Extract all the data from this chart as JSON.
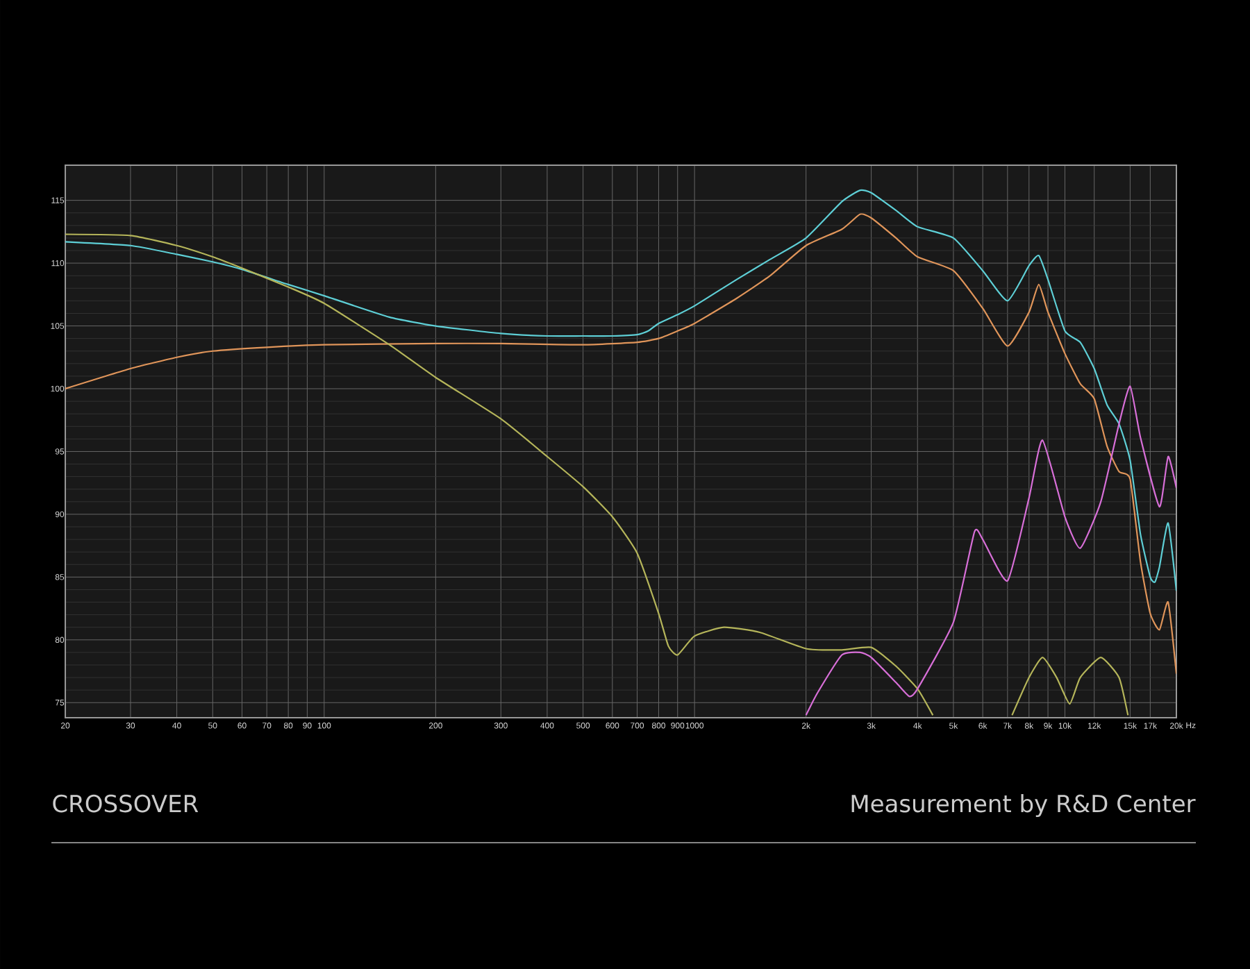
{
  "chart_data": {
    "type": "line",
    "title": "CROSSOVER",
    "annotations": [
      "Measurement by R&D Center"
    ],
    "log": "x",
    "xlim": [
      20,
      20000
    ],
    "ylim": [
      73.8,
      117.8
    ],
    "grid": true,
    "xlabel": "Hz",
    "xticks": [
      20,
      30,
      40,
      50,
      60,
      70,
      80,
      90,
      100,
      200,
      300,
      400,
      500,
      600,
      700,
      800,
      900,
      1000,
      {
        "value": 2000,
        "label": "2k"
      },
      {
        "value": 3000,
        "label": "3k"
      },
      {
        "value": 4000,
        "label": "4k"
      },
      {
        "value": 5000,
        "label": "5k"
      },
      {
        "value": 6000,
        "label": "6k"
      },
      {
        "value": 7000,
        "label": "7k"
      },
      {
        "value": 8000,
        "label": "8k"
      },
      {
        "value": 9000,
        "label": "9k"
      },
      {
        "value": 10000,
        "label": "10k"
      },
      {
        "value": 12000,
        "label": "12k"
      },
      {
        "value": 15000,
        "label": "15k"
      },
      {
        "value": 17000,
        "label": "17k"
      },
      {
        "value": 20000,
        "label": "20k"
      }
    ],
    "yticks": [
      75,
      80,
      85,
      90,
      95,
      100,
      105,
      110,
      115
    ],
    "series": [
      {
        "color": "#5ecfd6",
        "x": [
          20,
          30,
          40,
          50,
          60,
          80,
          100,
          150,
          200,
          300,
          400,
          500,
          600,
          700,
          750,
          800,
          900,
          1000,
          1300,
          1600,
          2000,
          2500,
          2800,
          3000,
          3500,
          4000,
          5000,
          6000,
          7000,
          8000,
          8500,
          9000,
          10000,
          11000,
          12000,
          13000,
          14000,
          15000,
          16000,
          17000,
          17500,
          18000,
          19000,
          20000
        ],
        "values": [
          111.7,
          111.4,
          110.7,
          110.1,
          109.5,
          108.3,
          107.4,
          105.7,
          105.0,
          104.4,
          104.2,
          104.2,
          104.2,
          104.3,
          104.6,
          105.2,
          105.9,
          106.6,
          108.7,
          110.3,
          112.0,
          114.9,
          115.8,
          115.6,
          114.2,
          112.9,
          112.0,
          109.4,
          107.0,
          109.8,
          110.6,
          108.7,
          104.6,
          103.7,
          101.6,
          98.7,
          97.2,
          94.3,
          88.4,
          85.0,
          84.6,
          85.8,
          89.3,
          83.9
        ]
      },
      {
        "color": "#e0955a",
        "x": [
          20,
          30,
          40,
          50,
          70,
          100,
          200,
          300,
          500,
          700,
          800,
          900,
          1000,
          1300,
          1600,
          2000,
          2500,
          2800,
          3000,
          3500,
          4000,
          5000,
          6000,
          7000,
          8000,
          8500,
          9000,
          10000,
          11000,
          12000,
          13000,
          14000,
          15000,
          16000,
          17000,
          18000,
          19000,
          20000
        ],
        "values": [
          100.0,
          101.6,
          102.5,
          103.0,
          103.3,
          103.5,
          103.6,
          103.6,
          103.5,
          103.7,
          104.0,
          104.6,
          105.2,
          107.2,
          109.0,
          111.4,
          112.7,
          113.9,
          113.6,
          112.0,
          110.5,
          109.4,
          106.4,
          103.4,
          106.1,
          108.3,
          106.1,
          102.8,
          100.4,
          99.2,
          95.4,
          93.4,
          92.8,
          86.2,
          82.1,
          80.8,
          83.0,
          77.3
        ]
      },
      {
        "color": "#b5b55a",
        "x": [
          20,
          30,
          40,
          50,
          60,
          80,
          100,
          150,
          200,
          300,
          400,
          500,
          600,
          700,
          800,
          850,
          900,
          1000,
          1200,
          1500,
          2000,
          2500,
          3000,
          3500,
          4000,
          4400,
          5500,
          7200,
          8000,
          8700,
          9500,
          10300,
          11000,
          12500,
          14000,
          14800
        ],
        "values": [
          112.3,
          112.2,
          111.4,
          110.5,
          109.6,
          108.1,
          106.8,
          103.5,
          100.9,
          97.6,
          94.6,
          92.2,
          89.8,
          86.9,
          82.1,
          79.5,
          78.8,
          80.3,
          81.0,
          80.6,
          79.3,
          79.2,
          79.4,
          77.9,
          76.1,
          74.0,
          null,
          74.0,
          77.0,
          78.6,
          77.0,
          74.9,
          77.0,
          78.6,
          77.0,
          74.0
        ]
      },
      {
        "color": "#d86fd8",
        "x": [
          2000,
          2150,
          2500,
          2800,
          3000,
          3500,
          3800,
          4000,
          5000,
          5700,
          6000,
          7000,
          8000,
          8700,
          10000,
          11000,
          12500,
          14000,
          15000,
          16000,
          18000,
          19000,
          20000
        ],
        "values": [
          74.0,
          75.8,
          78.8,
          79.0,
          78.6,
          76.6,
          75.5,
          76.1,
          81.4,
          88.6,
          88.0,
          84.7,
          91.3,
          95.9,
          89.8,
          87.3,
          91.0,
          97.2,
          100.2,
          96.1,
          90.6,
          94.6,
          92.1
        ]
      }
    ]
  }
}
